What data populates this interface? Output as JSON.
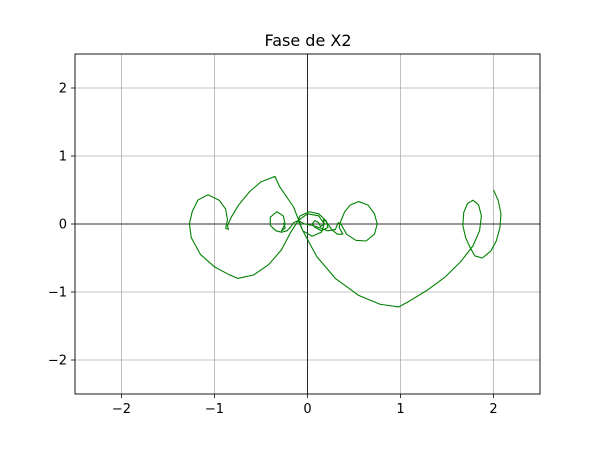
{
  "chart_data": {
    "type": "line",
    "title": "Fase de X2",
    "xlabel": "",
    "ylabel": "",
    "xlim": [
      -2.5,
      2.5
    ],
    "ylim": [
      -2.5,
      2.5
    ],
    "xticks": [
      -2,
      -1,
      0,
      1,
      2
    ],
    "yticks": [
      -2,
      -1,
      0,
      1,
      2
    ],
    "xtick_labels": [
      "−2",
      "−1",
      "0",
      "1",
      "2"
    ],
    "ytick_labels": [
      "−2",
      "−1",
      "0",
      "1",
      "2"
    ],
    "grid": true,
    "zero_lines": true,
    "series": [
      {
        "color": "#008000",
        "points": [
          [
            2.0,
            0.5
          ],
          [
            2.05,
            0.35
          ],
          [
            2.08,
            0.15
          ],
          [
            2.07,
            -0.05
          ],
          [
            2.03,
            -0.25
          ],
          [
            1.97,
            -0.4
          ],
          [
            1.88,
            -0.5
          ],
          [
            1.8,
            -0.47
          ],
          [
            1.75,
            -0.35
          ],
          [
            1.7,
            -0.2
          ],
          [
            1.67,
            -0.02
          ],
          [
            1.68,
            0.17
          ],
          [
            1.72,
            0.3
          ],
          [
            1.78,
            0.35
          ],
          [
            1.84,
            0.28
          ],
          [
            1.87,
            0.12
          ],
          [
            1.85,
            -0.1
          ],
          [
            1.78,
            -0.32
          ],
          [
            1.65,
            -0.55
          ],
          [
            1.48,
            -0.78
          ],
          [
            1.28,
            -0.98
          ],
          [
            1.1,
            -1.13
          ],
          [
            0.98,
            -1.22
          ],
          [
            0.78,
            -1.18
          ],
          [
            0.55,
            -1.05
          ],
          [
            0.3,
            -0.8
          ],
          [
            0.1,
            -0.48
          ],
          [
            -0.05,
            -0.1
          ],
          [
            -0.15,
            0.25
          ],
          [
            -0.3,
            0.55
          ],
          [
            -0.35,
            0.7
          ],
          [
            -0.5,
            0.62
          ],
          [
            -0.62,
            0.48
          ],
          [
            -0.74,
            0.28
          ],
          [
            -0.82,
            0.1
          ],
          [
            -0.86,
            -0.02
          ],
          [
            -0.85,
            -0.08
          ],
          [
            -0.88,
            -0.06
          ],
          [
            -0.86,
            0.06
          ],
          [
            -0.88,
            0.22
          ],
          [
            -0.95,
            0.35
          ],
          [
            -1.07,
            0.43
          ],
          [
            -1.18,
            0.35
          ],
          [
            -1.24,
            0.18
          ],
          [
            -1.27,
            0.0
          ],
          [
            -1.25,
            -0.2
          ],
          [
            -1.15,
            -0.45
          ],
          [
            -1.0,
            -0.63
          ],
          [
            -0.85,
            -0.74
          ],
          [
            -0.75,
            -0.8
          ],
          [
            -0.58,
            -0.75
          ],
          [
            -0.42,
            -0.6
          ],
          [
            -0.28,
            -0.38
          ],
          [
            -0.18,
            -0.12
          ],
          [
            -0.1,
            0.05
          ],
          [
            0.0,
            0.15
          ],
          [
            0.12,
            0.12
          ],
          [
            0.18,
            0.0
          ],
          [
            0.15,
            -0.12
          ],
          [
            0.05,
            -0.18
          ],
          [
            -0.05,
            -0.1
          ],
          [
            -0.1,
            0.05
          ],
          [
            -0.08,
            0.12
          ],
          [
            0.02,
            0.18
          ],
          [
            0.12,
            0.15
          ],
          [
            0.2,
            0.05
          ],
          [
            0.22,
            -0.05
          ],
          [
            0.15,
            -0.1
          ],
          [
            0.08,
            -0.05
          ],
          [
            0.05,
            0.0
          ],
          [
            0.08,
            0.05
          ],
          [
            0.12,
            0.02
          ],
          [
            0.14,
            -0.04
          ],
          [
            0.18,
            0.0
          ],
          [
            0.17,
            0.06
          ],
          [
            0.2,
            0.04
          ],
          [
            0.26,
            -0.08
          ],
          [
            0.32,
            -0.15
          ],
          [
            0.38,
            -0.15
          ],
          [
            0.34,
            -0.05
          ],
          [
            0.36,
            0.05
          ],
          [
            0.4,
            0.18
          ],
          [
            0.46,
            0.28
          ],
          [
            0.55,
            0.33
          ],
          [
            0.65,
            0.28
          ],
          [
            0.72,
            0.15
          ],
          [
            0.75,
            0.0
          ],
          [
            0.72,
            -0.15
          ],
          [
            0.63,
            -0.25
          ],
          [
            0.52,
            -0.24
          ],
          [
            0.42,
            -0.15
          ],
          [
            0.36,
            0.0
          ],
          [
            0.33,
            0.02
          ],
          [
            0.3,
            -0.08
          ],
          [
            0.22,
            -0.1
          ],
          [
            0.14,
            -0.06
          ],
          [
            0.05,
            -0.02
          ],
          [
            -0.03,
            0.0
          ],
          [
            -0.1,
            0.05
          ],
          [
            -0.15,
            0.02
          ],
          [
            -0.18,
            -0.04
          ],
          [
            -0.22,
            -0.1
          ],
          [
            -0.28,
            -0.12
          ],
          [
            -0.34,
            -0.1
          ],
          [
            -0.4,
            -0.02
          ],
          [
            -0.4,
            0.1
          ],
          [
            -0.33,
            0.18
          ],
          [
            -0.26,
            0.12
          ],
          [
            -0.24,
            0.0
          ],
          [
            -0.28,
            -0.1
          ],
          [
            -0.24,
            -0.06
          ],
          [
            -0.26,
            0.02
          ]
        ]
      }
    ]
  }
}
